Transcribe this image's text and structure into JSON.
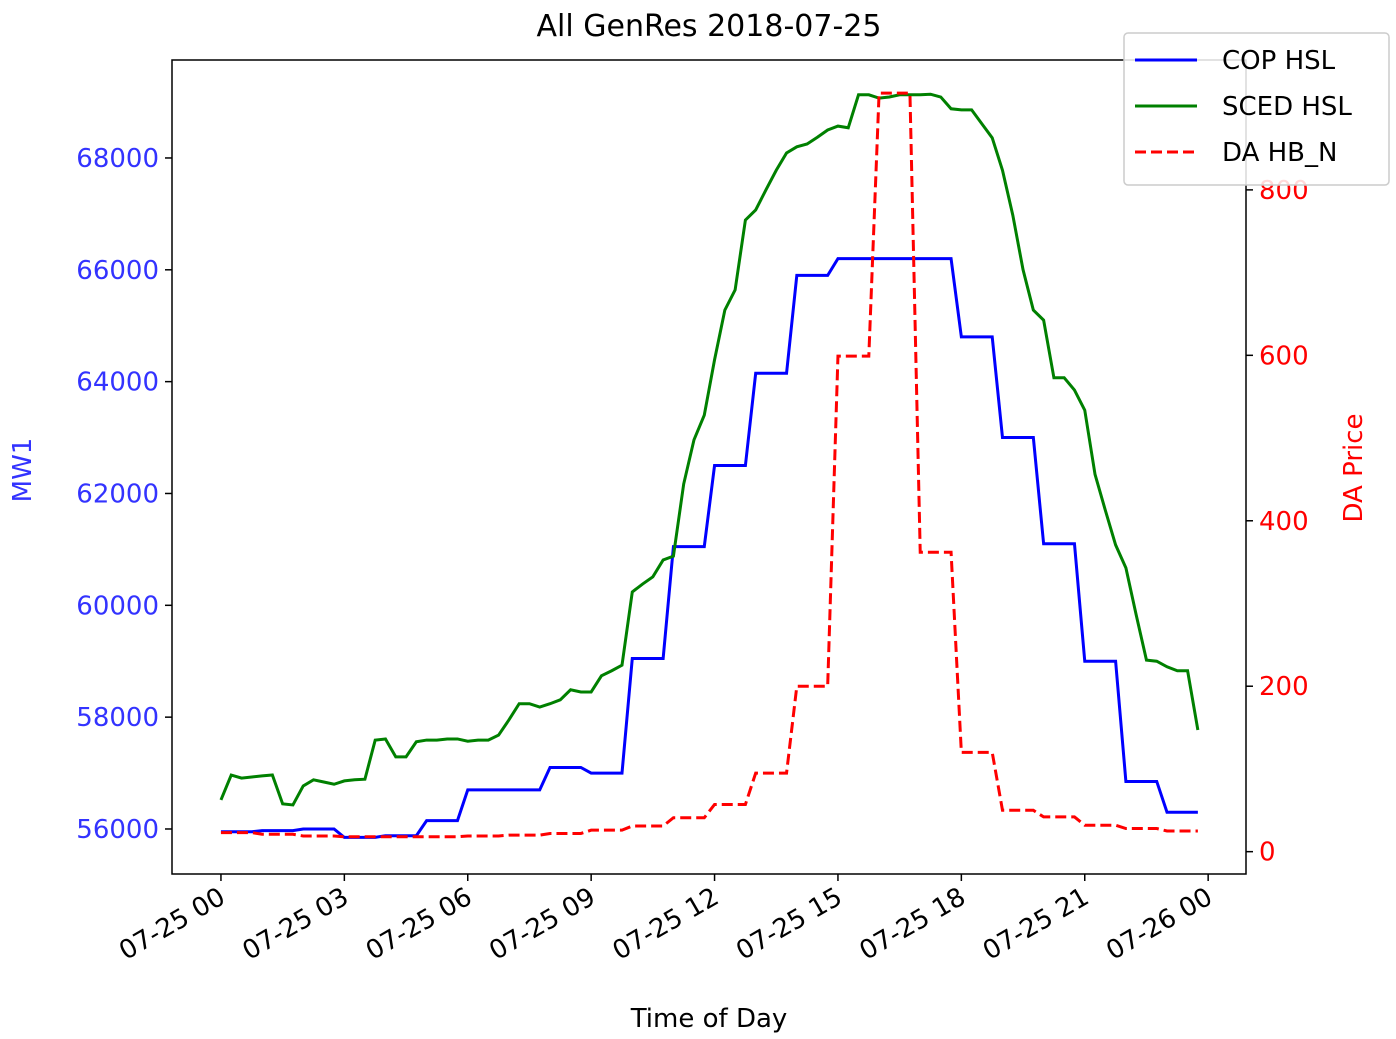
{
  "chart_data": {
    "type": "line",
    "title": "All GenRes 2018-07-25",
    "xlabel": "Time of Day",
    "ylabel": "MW1",
    "y2label": "DA Price",
    "y_color": "#3333ff",
    "y2_color": "#ff0000",
    "legend": "upper right",
    "x": [
      0,
      0.25,
      0.5,
      0.75,
      1,
      1.25,
      1.5,
      1.75,
      2,
      2.25,
      2.5,
      2.75,
      3,
      3.25,
      3.5,
      3.75,
      4,
      4.25,
      4.5,
      4.75,
      5,
      5.25,
      5.5,
      5.75,
      6,
      6.25,
      6.5,
      6.75,
      7,
      7.25,
      7.5,
      7.75,
      8,
      8.25,
      8.5,
      8.75,
      9,
      9.25,
      9.5,
      9.75,
      10,
      10.25,
      10.5,
      10.75,
      11,
      11.25,
      11.5,
      11.75,
      12,
      12.25,
      12.5,
      12.75,
      13,
      13.25,
      13.5,
      13.75,
      14,
      14.25,
      14.5,
      14.75,
      15,
      15.25,
      15.5,
      15.75,
      16,
      16.25,
      16.5,
      16.75,
      17,
      17.25,
      17.5,
      17.75,
      18,
      18.25,
      18.5,
      18.75,
      19,
      19.25,
      19.5,
      19.75,
      20,
      20.25,
      20.5,
      20.75,
      21,
      21.25,
      21.5,
      21.75,
      22,
      22.25,
      22.5,
      22.75,
      23,
      23.25,
      23.5,
      23.75
    ],
    "xlim": [
      -1.19,
      24.92
    ],
    "xticks": [
      {
        "value": 0,
        "label": "07-25 00"
      },
      {
        "value": 3,
        "label": "07-25 03"
      },
      {
        "value": 6,
        "label": "07-25 06"
      },
      {
        "value": 9,
        "label": "07-25 09"
      },
      {
        "value": 12,
        "label": "07-25 12"
      },
      {
        "value": 15,
        "label": "07-25 15"
      },
      {
        "value": 18,
        "label": "07-25 18"
      },
      {
        "value": 21,
        "label": "07-25 21"
      },
      {
        "value": 24,
        "label": "07-26 00"
      }
    ],
    "ylim": [
      55195,
      69752
    ],
    "yticks": [
      56000,
      58000,
      60000,
      62000,
      64000,
      66000,
      68000
    ],
    "y2lim": [
      -27,
      957
    ],
    "y2ticks": [
      0,
      200,
      400,
      600,
      800
    ],
    "series": [
      {
        "name": "COP HSL",
        "color": "#0000ff",
        "linestyle": "solid",
        "values": [
          55950,
          55950,
          55950,
          55950,
          55970,
          55970,
          55970,
          55970,
          56000,
          56000,
          56000,
          56000,
          55850,
          55850,
          55850,
          55850,
          55880,
          55880,
          55880,
          55880,
          56150,
          56150,
          56150,
          56150,
          56700,
          56700,
          56700,
          56700,
          56700,
          56700,
          56700,
          56700,
          57100,
          57100,
          57100,
          57100,
          57000,
          57000,
          57000,
          57000,
          59050,
          59050,
          59050,
          59050,
          61050,
          61050,
          61050,
          61050,
          62500,
          62500,
          62500,
          62500,
          64150,
          64150,
          64150,
          64150,
          65900,
          65900,
          65900,
          65900,
          66200,
          66200,
          66200,
          66200,
          66200,
          66200,
          66200,
          66200,
          66200,
          66200,
          66200,
          66200,
          64800,
          64800,
          64800,
          64800,
          63000,
          63000,
          63000,
          63000,
          61100,
          61100,
          61100,
          61100,
          59000,
          59000,
          59000,
          59000,
          56850,
          56850,
          56850,
          56850,
          56300,
          56300,
          56300,
          56300
        ]
      },
      {
        "name": "SCED HSL",
        "color": "#008000",
        "linestyle": "solid",
        "values": [
          56520,
          56965,
          56910,
          56930,
          56950,
          56965,
          56450,
          56430,
          56770,
          56880,
          56840,
          56800,
          56860,
          56880,
          56890,
          57590,
          57610,
          57290,
          57290,
          57560,
          57590,
          57590,
          57610,
          57610,
          57570,
          57590,
          57590,
          57680,
          57950,
          58240,
          58240,
          58180,
          58240,
          58310,
          58490,
          58450,
          58450,
          58740,
          58830,
          58930,
          60240,
          60380,
          60510,
          60810,
          60880,
          62170,
          62960,
          63400,
          64390,
          65280,
          65640,
          66890,
          67070,
          67430,
          67780,
          68090,
          68200,
          68250,
          68370,
          68500,
          68570,
          68540,
          69130,
          69130,
          69070,
          69090,
          69130,
          69130,
          69130,
          69140,
          69090,
          68880,
          68860,
          68860,
          68610,
          68360,
          67780,
          66980,
          66000,
          65280,
          65100,
          64070,
          64070,
          63850,
          63490,
          62340,
          61700,
          61080,
          60670,
          59830,
          59020,
          59000,
          58900,
          58830,
          58830,
          57770
        ]
      },
      {
        "name": "DA HB_N",
        "color": "#ff0000",
        "linestyle": "dashed",
        "axis": "y2",
        "values": [
          23,
          23,
          23,
          23,
          21,
          21,
          21,
          21,
          19,
          19,
          19,
          19,
          18,
          18,
          18,
          18,
          18,
          18,
          18,
          18,
          18,
          18,
          18,
          18,
          19,
          19,
          19,
          19,
          20,
          20,
          20,
          20,
          22,
          22,
          22,
          22,
          26,
          26,
          26,
          26,
          31,
          31,
          31,
          31,
          41,
          41,
          41,
          41,
          57,
          57,
          57,
          57,
          95,
          95,
          95,
          95,
          200,
          200,
          200,
          200,
          599,
          599,
          599,
          599,
          917,
          917,
          917,
          917,
          362,
          362,
          362,
          362,
          120,
          120,
          120,
          120,
          50,
          50,
          50,
          50,
          42,
          42,
          42,
          42,
          32,
          32,
          32,
          32,
          28,
          28,
          28,
          28,
          25,
          25,
          25,
          25
        ]
      }
    ]
  }
}
